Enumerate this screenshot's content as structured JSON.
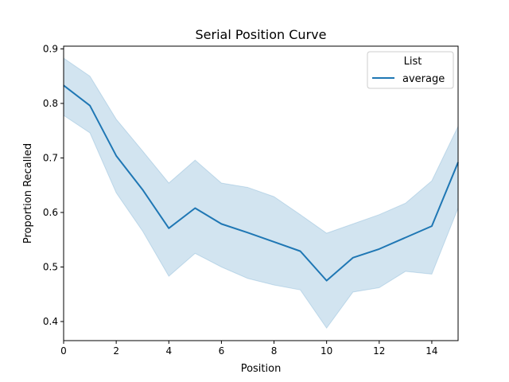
{
  "chart_data": {
    "type": "line",
    "title": "Serial Position Curve",
    "xlabel": "Position",
    "ylabel": "Proportion Recalled",
    "xlim": [
      0,
      15
    ],
    "ylim": [
      0.365,
      0.905
    ],
    "xticks": [
      0,
      2,
      4,
      6,
      8,
      10,
      12,
      14
    ],
    "yticks": [
      0.4,
      0.5,
      0.6,
      0.7,
      0.8,
      0.9
    ],
    "grid": false,
    "legend": {
      "title": "List",
      "placement": "top-right",
      "entries": [
        "average"
      ]
    },
    "x": [
      0,
      1,
      2,
      3,
      4,
      5,
      6,
      7,
      8,
      9,
      10,
      11,
      12,
      13,
      14,
      15
    ],
    "series": [
      {
        "name": "average",
        "color": "#1f77b4",
        "band_color": "#1f77b4",
        "values": [
          0.833,
          0.796,
          0.704,
          0.642,
          0.571,
          0.608,
          0.579,
          0.563,
          0.546,
          0.529,
          0.475,
          0.517,
          0.533,
          0.554,
          0.575,
          0.692
        ],
        "ci_low": [
          0.778,
          0.746,
          0.636,
          0.566,
          0.483,
          0.525,
          0.5,
          0.479,
          0.467,
          0.458,
          0.388,
          0.454,
          0.462,
          0.492,
          0.487,
          0.608
        ],
        "ci_high": [
          0.883,
          0.85,
          0.771,
          0.713,
          0.654,
          0.696,
          0.654,
          0.646,
          0.629,
          0.596,
          0.562,
          0.579,
          0.596,
          0.617,
          0.658,
          0.758
        ]
      }
    ]
  }
}
